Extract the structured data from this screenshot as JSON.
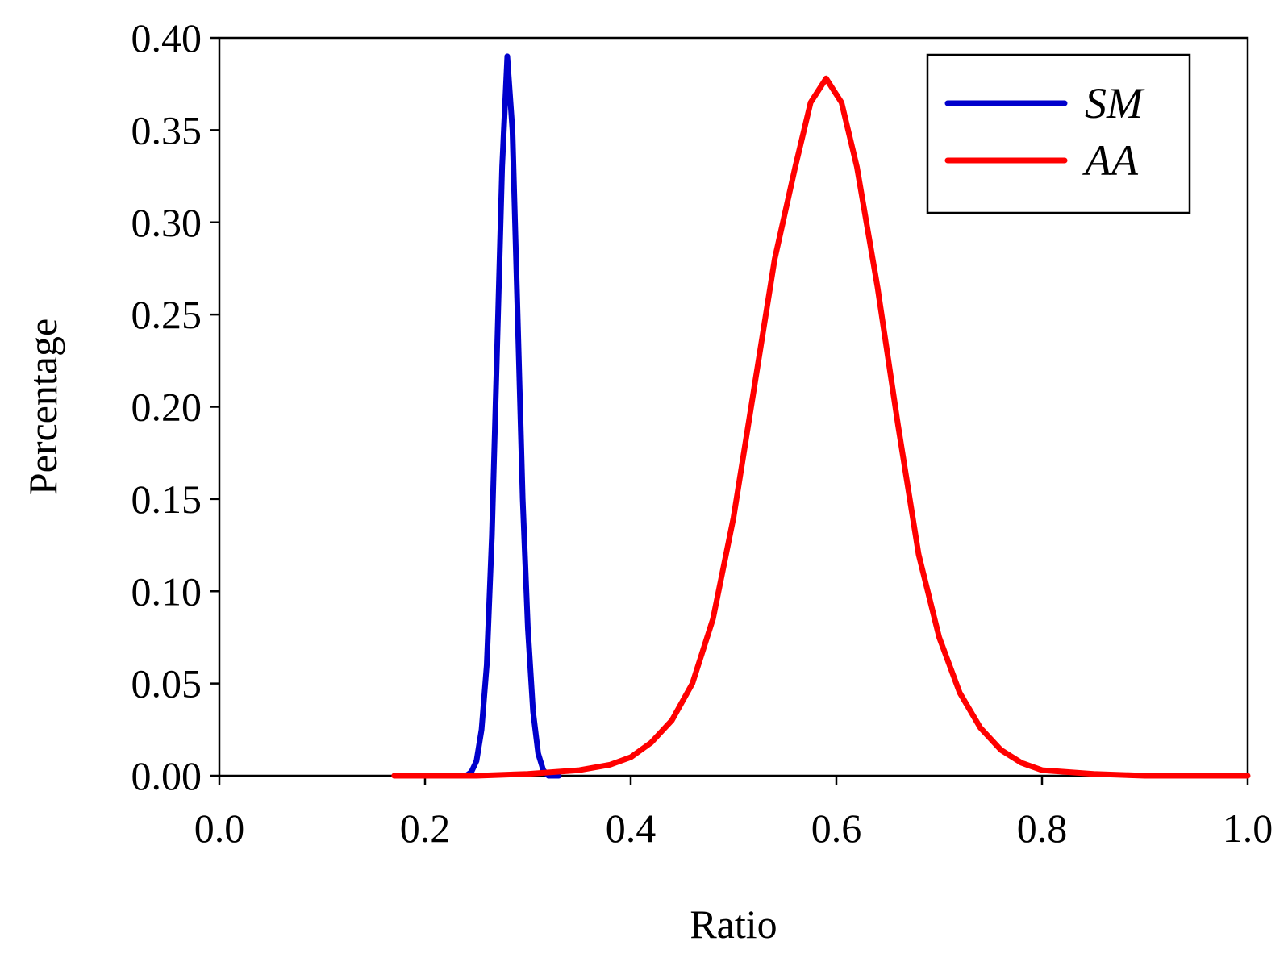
{
  "chart_data": {
    "type": "line",
    "title": "",
    "xlabel": "Ratio",
    "ylabel": "Percentage",
    "xlim": [
      0.0,
      1.0
    ],
    "ylim": [
      0.0,
      0.4
    ],
    "x_ticks": [
      "0.0",
      "0.2",
      "0.4",
      "0.6",
      "0.8",
      "1.0"
    ],
    "y_ticks": [
      "0.00",
      "0.05",
      "0.10",
      "0.15",
      "0.20",
      "0.25",
      "0.30",
      "0.35",
      "0.40"
    ],
    "legend_position": "top-right",
    "series": [
      {
        "name": "SM",
        "color": "#0000cc",
        "points": [
          [
            0.24,
            0.0
          ],
          [
            0.245,
            0.002
          ],
          [
            0.25,
            0.008
          ],
          [
            0.255,
            0.025
          ],
          [
            0.26,
            0.06
          ],
          [
            0.265,
            0.13
          ],
          [
            0.27,
            0.23
          ],
          [
            0.275,
            0.33
          ],
          [
            0.28,
            0.39
          ],
          [
            0.285,
            0.35
          ],
          [
            0.29,
            0.25
          ],
          [
            0.295,
            0.15
          ],
          [
            0.3,
            0.08
          ],
          [
            0.305,
            0.035
          ],
          [
            0.31,
            0.012
          ],
          [
            0.315,
            0.003
          ],
          [
            0.32,
            0.0
          ],
          [
            0.33,
            0.0
          ]
        ]
      },
      {
        "name": "AA",
        "color": "#ff0000",
        "points": [
          [
            0.17,
            0.0
          ],
          [
            0.25,
            0.0
          ],
          [
            0.3,
            0.001
          ],
          [
            0.35,
            0.003
          ],
          [
            0.38,
            0.006
          ],
          [
            0.4,
            0.01
          ],
          [
            0.42,
            0.018
          ],
          [
            0.44,
            0.03
          ],
          [
            0.46,
            0.05
          ],
          [
            0.48,
            0.085
          ],
          [
            0.5,
            0.14
          ],
          [
            0.52,
            0.21
          ],
          [
            0.54,
            0.28
          ],
          [
            0.56,
            0.33
          ],
          [
            0.575,
            0.365
          ],
          [
            0.59,
            0.378
          ],
          [
            0.605,
            0.365
          ],
          [
            0.62,
            0.33
          ],
          [
            0.64,
            0.265
          ],
          [
            0.66,
            0.19
          ],
          [
            0.68,
            0.12
          ],
          [
            0.7,
            0.075
          ],
          [
            0.72,
            0.045
          ],
          [
            0.74,
            0.026
          ],
          [
            0.76,
            0.014
          ],
          [
            0.78,
            0.007
          ],
          [
            0.8,
            0.003
          ],
          [
            0.85,
            0.001
          ],
          [
            0.9,
            0.0
          ],
          [
            1.0,
            0.0
          ]
        ]
      }
    ]
  }
}
